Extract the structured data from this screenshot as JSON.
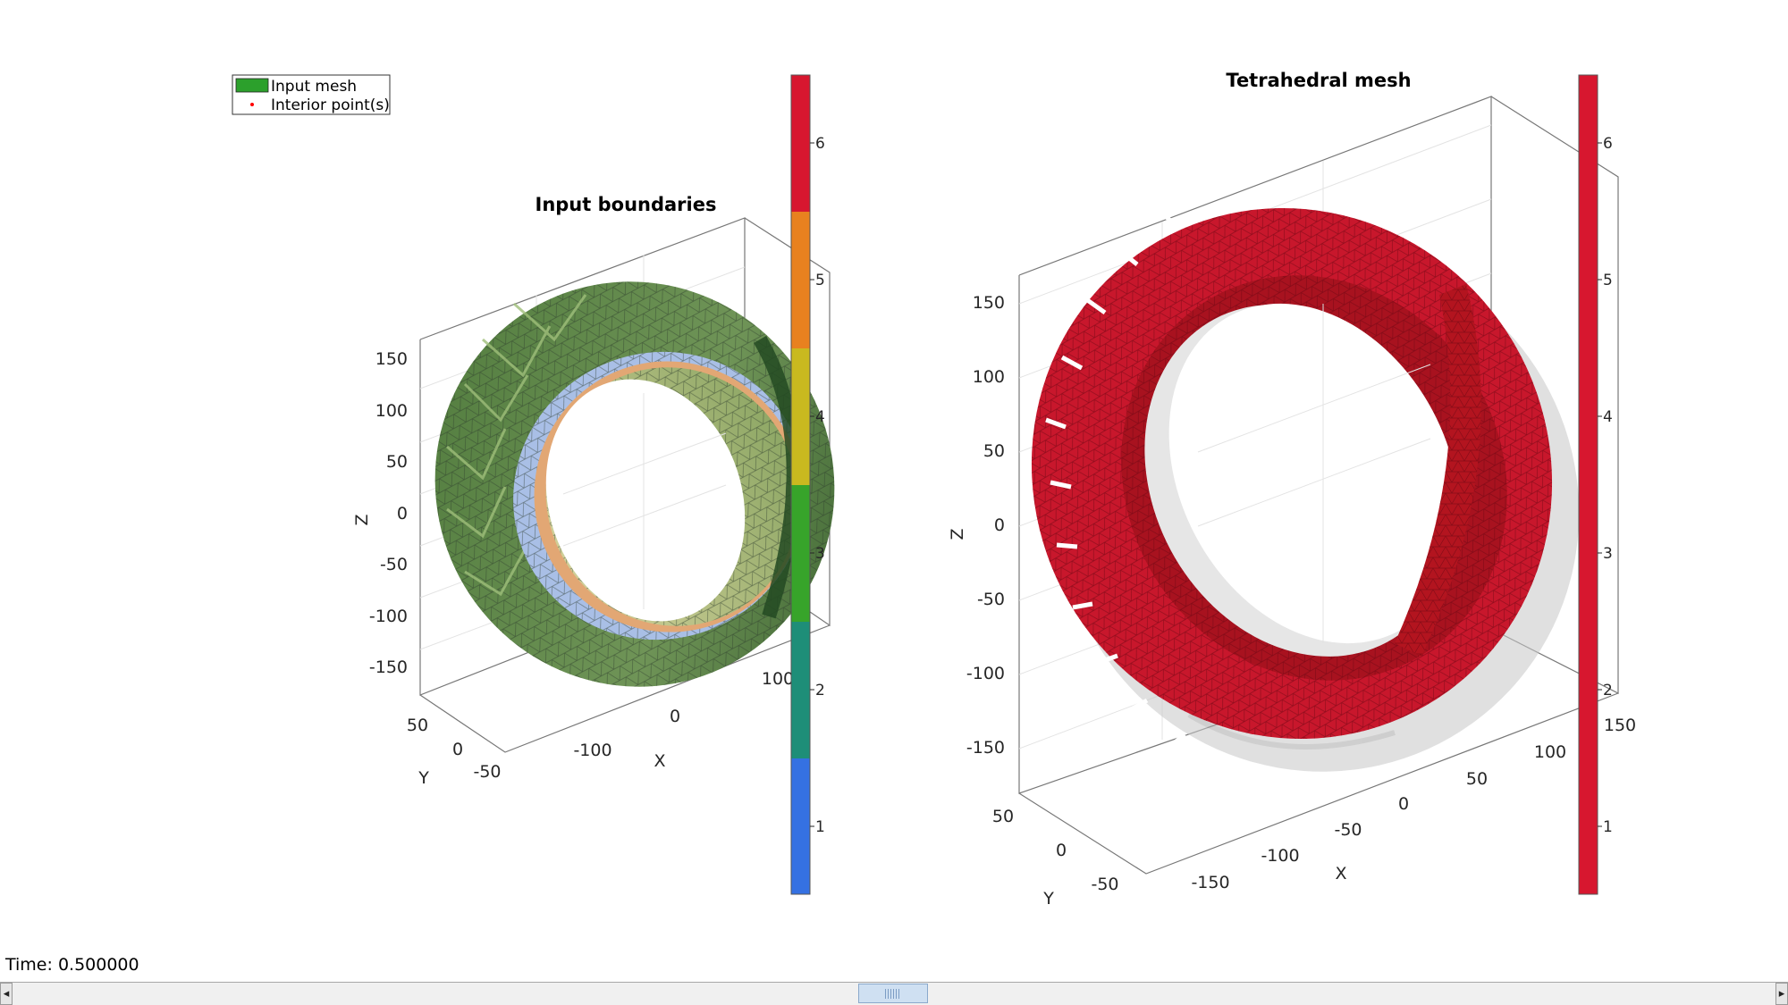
{
  "window": {
    "time_label": "Time: 0.500000"
  },
  "legend": {
    "entries": [
      {
        "label": "Input mesh",
        "color": "#2ca02c"
      },
      {
        "label": "Interior point(s)",
        "color": "#ff0000"
      }
    ]
  },
  "left_plot": {
    "title": "Input boundaries",
    "xlabel": "X",
    "ylabel": "Y",
    "zlabel": "Z",
    "z_ticks": [
      "150",
      "100",
      "50",
      "0",
      "-50",
      "-100",
      "-150"
    ],
    "x_ticks": [
      "-100",
      "0",
      "100"
    ],
    "y_ticks": [
      "50",
      "0",
      "-50"
    ]
  },
  "left_colorbar": {
    "ticks": [
      "6",
      "5",
      "4",
      "3",
      "2",
      "1"
    ],
    "band_colors": [
      "#d7172f",
      "#e8811f",
      "#c9b91f",
      "#37a42a",
      "#1e8e78",
      "#3571e2"
    ]
  },
  "right_plot": {
    "title": "Tetrahedral mesh",
    "xlabel": "X",
    "ylabel": "Y",
    "zlabel": "Z",
    "z_ticks": [
      "150",
      "100",
      "50",
      "0",
      "-50",
      "-100",
      "-150"
    ],
    "x_ticks": [
      "-150",
      "-100",
      "-50",
      "0",
      "50",
      "100",
      "150"
    ],
    "y_ticks": [
      "50",
      "0",
      "-50"
    ]
  },
  "right_colorbar": {
    "ticks": [
      "6",
      "5",
      "4",
      "3",
      "2",
      "1"
    ],
    "color": "#d7172f"
  },
  "colors": {
    "mesh_red": "#c8172c",
    "ghost_gray": "#c8c8c8",
    "box_line": "#777777",
    "grid": "#e3e3e3"
  }
}
